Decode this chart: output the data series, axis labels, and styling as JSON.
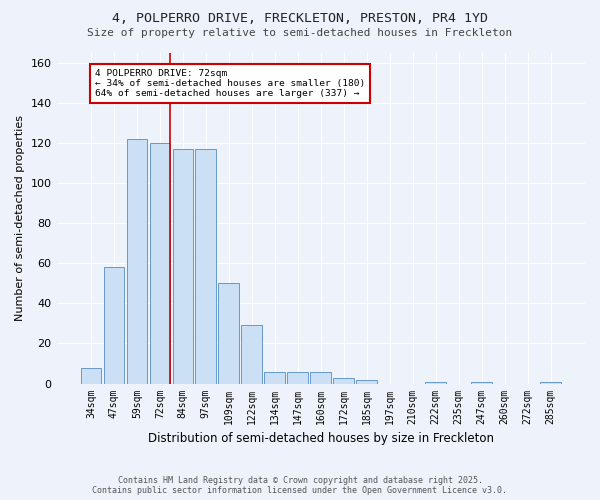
{
  "title_line1": "4, POLPERRO DRIVE, FRECKLETON, PRESTON, PR4 1YD",
  "title_line2": "Size of property relative to semi-detached houses in Freckleton",
  "xlabel": "Distribution of semi-detached houses by size in Freckleton",
  "ylabel": "Number of semi-detached properties",
  "categories": [
    "34sqm",
    "47sqm",
    "59sqm",
    "72sqm",
    "84sqm",
    "97sqm",
    "109sqm",
    "122sqm",
    "134sqm",
    "147sqm",
    "160sqm",
    "172sqm",
    "185sqm",
    "197sqm",
    "210sqm",
    "222sqm",
    "235sqm",
    "247sqm",
    "260sqm",
    "272sqm",
    "285sqm"
  ],
  "values": [
    8,
    58,
    122,
    120,
    117,
    117,
    50,
    29,
    6,
    6,
    6,
    3,
    2,
    0,
    0,
    1,
    0,
    1,
    0,
    0,
    1
  ],
  "bar_color": "#cce0f5",
  "bar_edge_color": "#6699cc",
  "vline_x_index": 3.45,
  "annotation_text_line1": "4 POLPERRO DRIVE: 72sqm",
  "annotation_text_line2": "← 34% of semi-detached houses are smaller (180)",
  "annotation_text_line3": "64% of semi-detached houses are larger (337) →",
  "annotation_box_color": "#ffffff",
  "annotation_box_edge_color": "#cc0000",
  "vline_color": "#cc0000",
  "background_color": "#eef2fa",
  "grid_color": "#ffffff",
  "ylim": [
    0,
    165
  ],
  "yticks": [
    0,
    20,
    40,
    60,
    80,
    100,
    120,
    140,
    160
  ],
  "footer_line1": "Contains HM Land Registry data © Crown copyright and database right 2025.",
  "footer_line2": "Contains public sector information licensed under the Open Government Licence v3.0."
}
